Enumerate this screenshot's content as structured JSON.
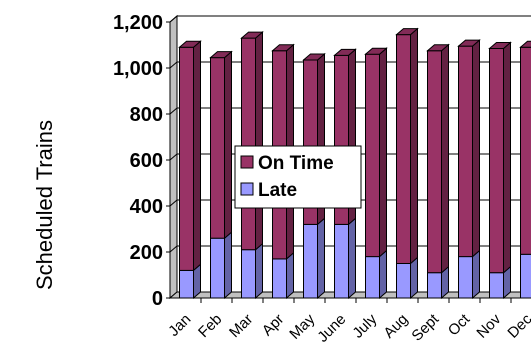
{
  "chart_data": {
    "type": "bar",
    "stacked": true,
    "three_d": true,
    "title": "",
    "xlabel": "",
    "ylabel": "Scheduled Trains",
    "ylim": [
      0,
      1200
    ],
    "yticks": [
      "0",
      "200",
      "400",
      "600",
      "800",
      "1,000",
      "1,200"
    ],
    "grid": true,
    "legend_position": "center-left",
    "categories": [
      "Jan",
      "Feb",
      "Mar",
      "Apr",
      "May",
      "June",
      "July",
      "Aug",
      "Sept",
      "Oct",
      "Nov",
      "Dec"
    ],
    "series": [
      {
        "name": "Late",
        "color": "#9999ff",
        "values": [
          120,
          260,
          210,
          170,
          320,
          320,
          180,
          150,
          110,
          180,
          110,
          190
        ]
      },
      {
        "name": "On Time",
        "color": "#993366",
        "values": [
          970,
          785,
          920,
          905,
          715,
          735,
          880,
          995,
          965,
          915,
          975,
          900
        ]
      }
    ],
    "legend_order": [
      "On Time",
      "Late"
    ]
  }
}
